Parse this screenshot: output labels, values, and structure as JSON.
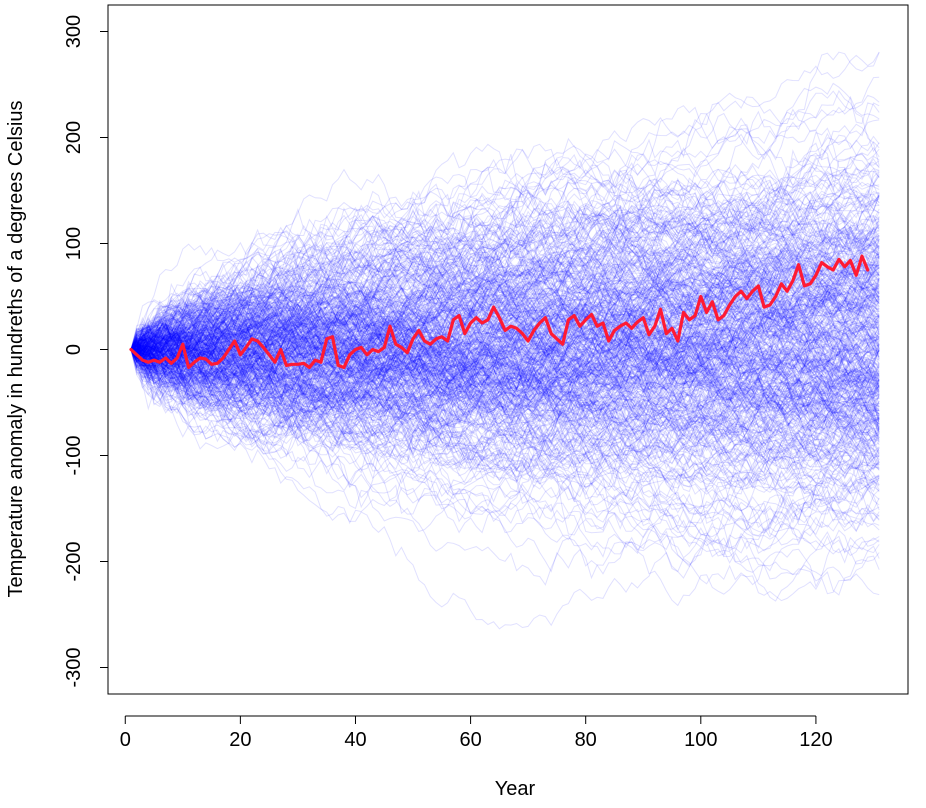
{
  "chart_data": {
    "type": "line",
    "title": "",
    "xlabel": "Year",
    "ylabel": "Temperature anomaly in hundreths of a degrees Celsius",
    "xlim": [
      -3,
      136
    ],
    "ylim": [
      -325,
      325
    ],
    "x_ticks": [
      0,
      20,
      40,
      60,
      80,
      100,
      120
    ],
    "y_ticks": [
      -300,
      -200,
      -100,
      0,
      100,
      200,
      300
    ],
    "x_tick_labels": [
      "0",
      "20",
      "40",
      "60",
      "80",
      "100",
      "120"
    ],
    "y_tick_labels": [
      "-300",
      "-200",
      "-100",
      "0",
      "100",
      "200",
      "300"
    ],
    "grid": false,
    "legend": "none",
    "simulations": {
      "description": "many random-walk simulations drawn as translucent blue lines",
      "count": 500,
      "x_start": 1,
      "x_end": 131,
      "start_value": 0,
      "step_sd": 8,
      "color": "#0000ff",
      "opacity": 0.12
    },
    "series": [
      {
        "color": "#ff1a33",
        "x_start": 1,
        "values": [
          0,
          -5,
          -10,
          -12,
          -10,
          -12,
          -8,
          -13,
          -8,
          5,
          -17,
          -12,
          -8,
          -9,
          -14,
          -13,
          -8,
          0,
          8,
          -5,
          2,
          10,
          8,
          2,
          -5,
          -12,
          0,
          -15,
          -14,
          -14,
          -13,
          -17,
          -10,
          -12,
          10,
          12,
          -15,
          -17,
          -5,
          0,
          2,
          -5,
          0,
          -2,
          2,
          22,
          5,
          2,
          -3,
          10,
          18,
          8,
          5,
          10,
          12,
          8,
          28,
          32,
          15,
          25,
          30,
          25,
          28,
          40,
          30,
          18,
          22,
          20,
          15,
          8,
          18,
          25,
          30,
          15,
          10,
          5,
          28,
          32,
          22,
          28,
          33,
          22,
          25,
          8,
          18,
          22,
          25,
          20,
          26,
          30,
          14,
          22,
          38,
          15,
          20,
          8,
          35,
          28,
          32,
          50,
          35,
          45,
          28,
          32,
          42,
          50,
          55,
          48,
          55,
          60,
          40,
          42,
          50,
          62,
          55,
          65,
          80,
          60,
          62,
          70,
          82,
          78,
          75,
          85,
          78,
          84,
          70,
          88,
          75
        ]
      }
    ]
  }
}
